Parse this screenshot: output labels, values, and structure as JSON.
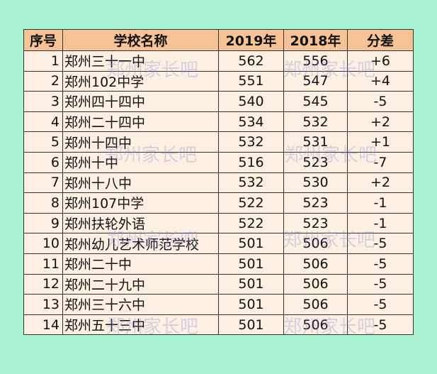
{
  "table": {
    "header": [
      "序号",
      "学校名称",
      "2019年",
      "2018年",
      "分差"
    ],
    "rows": [
      [
        "1",
        "郑州三十一中",
        "562",
        "556",
        "+6"
      ],
      [
        "2",
        "郑州102中学",
        "551",
        "547",
        "+4"
      ],
      [
        "3",
        "郑州四十四中",
        "540",
        "545",
        "-5"
      ],
      [
        "4",
        "郑州二十四中",
        "534",
        "532",
        "+2"
      ],
      [
        "5",
        "郑州十四中",
        "532",
        "531",
        "+1"
      ],
      [
        "6",
        "郑州十中",
        "516",
        "523",
        "-7"
      ],
      [
        "7",
        "郑州十八中",
        "532",
        "530",
        "+2"
      ],
      [
        "8",
        "郑州107中学",
        "522",
        "523",
        "-1"
      ],
      [
        "9",
        "郑州扶轮外语",
        "522",
        "523",
        "-1"
      ],
      [
        "10",
        "郑州幼儿艺术师范学校",
        "501",
        "506",
        "-5"
      ],
      [
        "11",
        "郑州二十中",
        "501",
        "506",
        "-5"
      ],
      [
        "12",
        "郑州二十九中",
        "501",
        "506",
        "-5"
      ],
      [
        "13",
        "郑州三十六中",
        "501",
        "506",
        "-5"
      ],
      [
        "14",
        "郑州五十三中",
        "501",
        "506",
        "-5"
      ]
    ]
  },
  "watermark": "郑州家长吧"
}
